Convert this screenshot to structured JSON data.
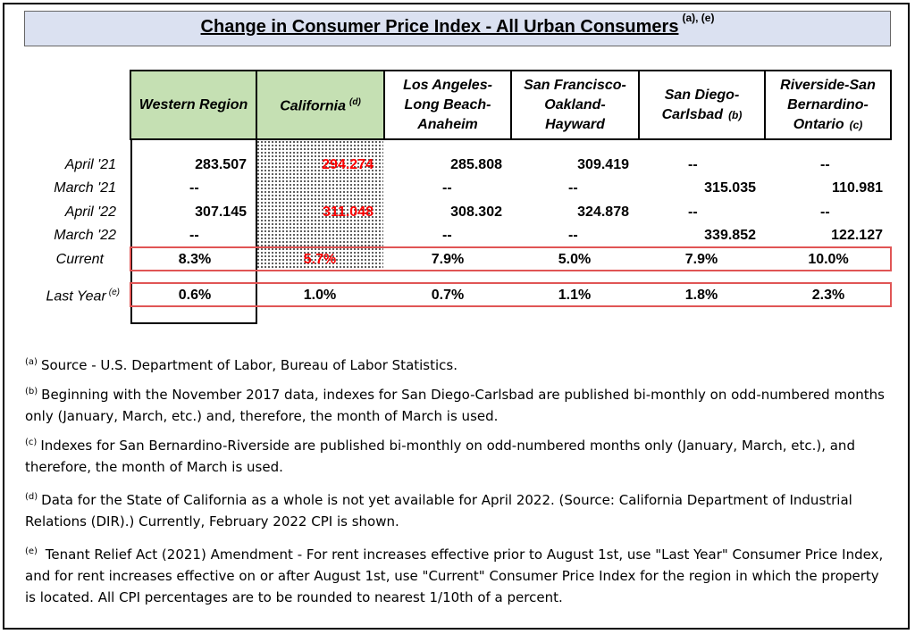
{
  "title": "Change in Consumer Price Index - All Urban Consumers",
  "title_note": "(a), (e)",
  "columns": [
    {
      "line1": "Western Region",
      "line2": "",
      "line3": "",
      "mark": ""
    },
    {
      "line1": "California",
      "line2": "",
      "line3": "",
      "mark": "(d)"
    },
    {
      "line1": "Los Angeles-",
      "line2": "Long Beach-",
      "line3": "Anaheim",
      "mark": ""
    },
    {
      "line1": "San Francisco-",
      "line2": "Oakland-",
      "line3": "Hayward",
      "mark": ""
    },
    {
      "line1": "San Diego-",
      "line2": "Carlsbad",
      "line3": "",
      "mark": "(b)"
    },
    {
      "line1": "Riverside-San",
      "line2": "Bernardino-",
      "line3": "Ontario",
      "mark": "(c)"
    }
  ],
  "rows": [
    {
      "label": "April '21",
      "mark": "",
      "values": [
        "283.507",
        "294.274",
        "285.808",
        "309.419",
        "--",
        "--"
      ]
    },
    {
      "label": "March '21",
      "mark": "",
      "values": [
        "--",
        "",
        "--",
        "--",
        "315.035",
        "110.981"
      ]
    },
    {
      "label": "April '22",
      "mark": "",
      "values": [
        "307.145",
        "311.048",
        "308.302",
        "324.878",
        "--",
        "--"
      ]
    },
    {
      "label": "March '22",
      "mark": "",
      "values": [
        "--",
        "",
        "--",
        "--",
        "339.852",
        "122.127"
      ]
    },
    {
      "label": "Current",
      "mark": "",
      "values": [
        "8.3%",
        "5.7%",
        "7.9%",
        "5.0%",
        "7.9%",
        "10.0%"
      ]
    },
    {
      "label": "Last Year",
      "mark": "(e)",
      "values": [
        "0.6%",
        "1.0%",
        "0.7%",
        "1.1%",
        "1.8%",
        "2.3%"
      ]
    }
  ],
  "colors": {
    "header_green": "#c5e0b3",
    "title_bg": "#dbe1f1",
    "highlight_red": "#ff0000",
    "box_red": "#e05555"
  },
  "notes": [
    {
      "mark": "(a)",
      "text": "Source - U.S. Department of Labor, Bureau of Labor Statistics."
    },
    {
      "mark": "(b)",
      "text": "Beginning with the November 2017 data, indexes for San Diego-Carlsbad are published bi-monthly on odd-numbered months only (January, March, etc.) and, therefore, the month of March is used."
    },
    {
      "mark": "(c)",
      "text": "Indexes for San Bernardino-Riverside are published bi-monthly on odd-numbered months only (January, March, etc.), and therefore, the month of March is used."
    },
    {
      "mark": "(d)",
      "text": "Data for the State of California as a whole is not yet available for April 2022.  (Source: California Department of Industrial Relations (DIR).)  Currently, February 2022 CPI is shown."
    },
    {
      "mark": "(e)",
      "text": " Tenant Relief Act (2021) Amendment - For rent increases effective prior to August 1st, use \"Last Year\" Consumer Price Index, and for rent increases effective on or after August 1st, use \"Current\" Consumer Price Index for the region in which the property is located.  All CPI percentages are to be rounded to nearest 1/10th of a percent."
    }
  ]
}
